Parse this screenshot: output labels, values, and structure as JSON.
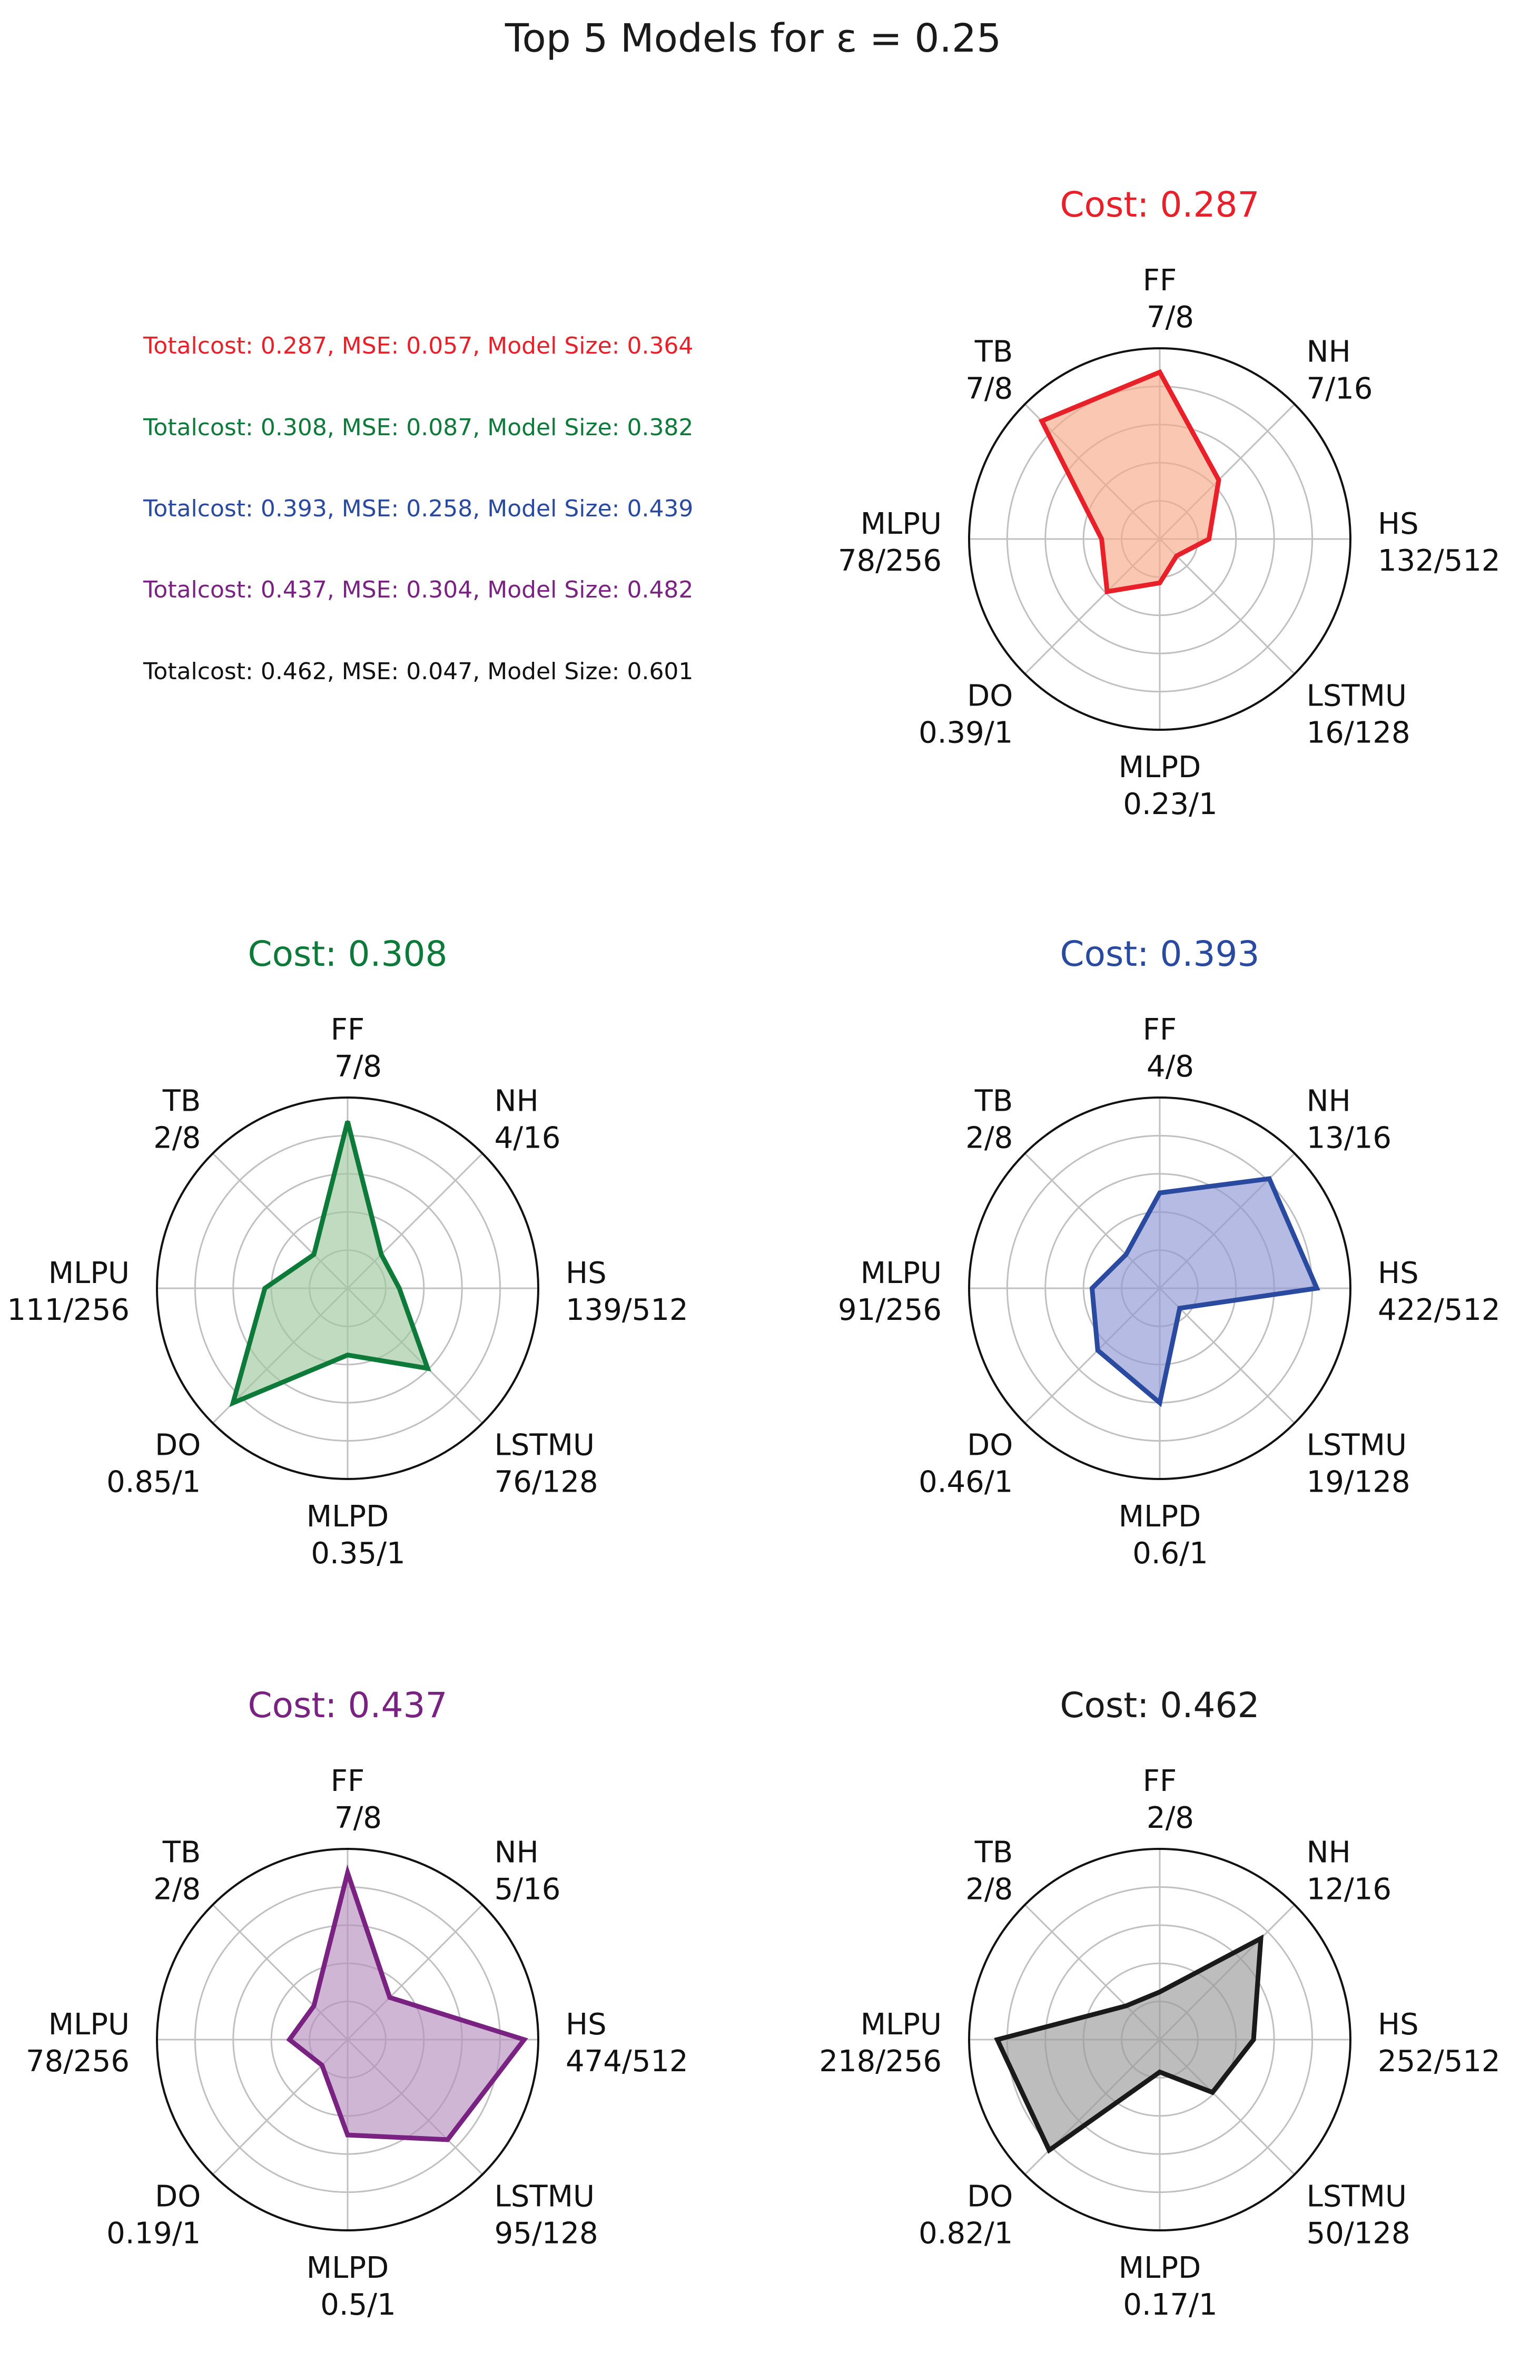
{
  "figure": {
    "title": "Top 5 Models for ε = 0.25"
  },
  "legend": [
    {
      "text": "Totalcost: 0.287, MSE: 0.057, Model Size: 0.364",
      "color": "#e8202a"
    },
    {
      "text": "Totalcost: 0.308, MSE: 0.087, Model Size: 0.382",
      "color": "#0e7a3a"
    },
    {
      "text": "Totalcost: 0.393, MSE: 0.258, Model Size: 0.439",
      "color": "#2a4aa0"
    },
    {
      "text": "Totalcost: 0.437, MSE: 0.304, Model Size: 0.482",
      "color": "#7a2282"
    },
    {
      "text": "Totalcost: 0.462, MSE: 0.047, Model Size: 0.601",
      "color": "#111111"
    }
  ],
  "chart_data": [
    {
      "type": "radar",
      "title": "Cost: 0.287",
      "color": "#e8202a",
      "fill": "#f7a98a",
      "axes": [
        "FF",
        "NH",
        "HS",
        "LSTMU",
        "MLPD",
        "DO",
        "MLPU",
        "TB"
      ],
      "labels": [
        "7/8",
        "7/16",
        "132/512",
        "16/128",
        "0.23/1",
        "0.39/1",
        "78/256",
        "7/8"
      ],
      "values": [
        0.875,
        0.4375,
        0.258,
        0.125,
        0.23,
        0.39,
        0.305,
        0.875
      ],
      "rlim": [
        0,
        1
      ]
    },
    {
      "type": "radar",
      "title": "Cost: 0.308",
      "color": "#0e7a3a",
      "fill": "#9fc7a0",
      "axes": [
        "FF",
        "NH",
        "HS",
        "LSTMU",
        "MLPD",
        "DO",
        "MLPU",
        "TB"
      ],
      "labels": [
        "7/8",
        "4/16",
        "139/512",
        "76/128",
        "0.35/1",
        "0.85/1",
        "111/256",
        "2/8"
      ],
      "values": [
        0.875,
        0.25,
        0.271,
        0.594,
        0.35,
        0.85,
        0.434,
        0.25
      ],
      "rlim": [
        0,
        1
      ]
    },
    {
      "type": "radar",
      "title": "Cost: 0.393",
      "color": "#2a4aa0",
      "fill": "#8d97d4",
      "axes": [
        "FF",
        "NH",
        "HS",
        "LSTMU",
        "MLPD",
        "DO",
        "MLPU",
        "TB"
      ],
      "labels": [
        "4/8",
        "13/16",
        "422/512",
        "19/128",
        "0.6/1",
        "0.46/1",
        "91/256",
        "2/8"
      ],
      "values": [
        0.5,
        0.8125,
        0.824,
        0.148,
        0.6,
        0.46,
        0.355,
        0.25
      ],
      "rlim": [
        0,
        1
      ]
    },
    {
      "type": "radar",
      "title": "Cost: 0.437",
      "color": "#7a2282",
      "fill": "#b58fbd",
      "axes": [
        "FF",
        "NH",
        "HS",
        "LSTMU",
        "MLPD",
        "DO",
        "MLPU",
        "TB"
      ],
      "labels": [
        "7/8",
        "5/16",
        "474/512",
        "95/128",
        "0.5/1",
        "0.19/1",
        "78/256",
        "2/8"
      ],
      "values": [
        0.875,
        0.3125,
        0.926,
        0.742,
        0.5,
        0.19,
        0.305,
        0.25
      ],
      "rlim": [
        0,
        1
      ]
    },
    {
      "type": "radar",
      "title": "Cost: 0.462",
      "color": "#1a1a1a",
      "fill": "#9a9a9a",
      "axes": [
        "FF",
        "NH",
        "HS",
        "LSTMU",
        "MLPD",
        "DO",
        "MLPU",
        "TB"
      ],
      "labels": [
        "2/8",
        "12/16",
        "252/512",
        "50/128",
        "0.17/1",
        "0.82/1",
        "218/256",
        "2/8"
      ],
      "values": [
        0.25,
        0.75,
        0.492,
        0.391,
        0.17,
        0.82,
        0.852,
        0.25
      ],
      "rlim": [
        0,
        1
      ]
    }
  ]
}
